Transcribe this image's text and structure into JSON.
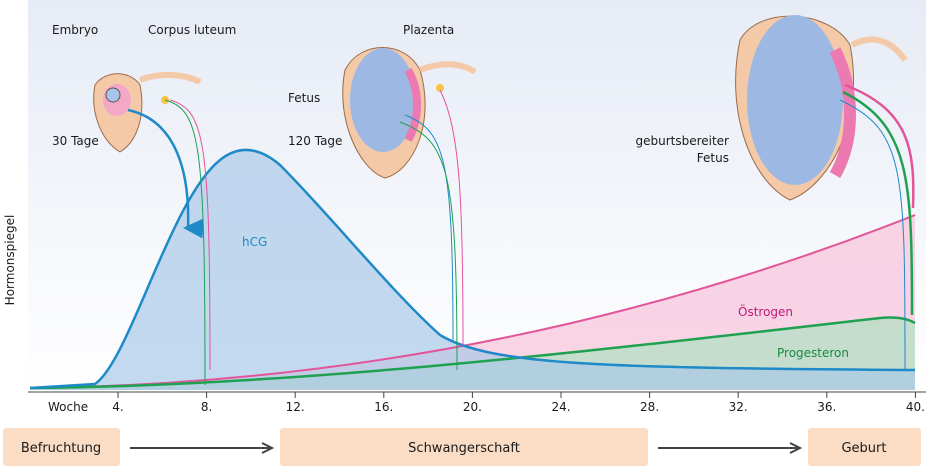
{
  "axis": {
    "y_label": "Hormonspiegel",
    "x_label": "Woche",
    "ticks": [
      "4.",
      "8.",
      "12.",
      "16.",
      "20.",
      "24.",
      "28.",
      "32.",
      "36.",
      "40."
    ]
  },
  "illustrations": {
    "embryo": "Embryo",
    "corpus_luteum": "Corpus luteum",
    "day30": "30 Tage",
    "fetus": "Fetus",
    "day120": "120 Tage",
    "placenta": "Plazenta",
    "fetus_ready": [
      "geburtsbereiter",
      "Fetus"
    ]
  },
  "curves": {
    "hcg": "hCG",
    "estrogen": "Östrogen",
    "progesterone": "Progesteron"
  },
  "stages": [
    "Befruchtung",
    "Schwangerschaft",
    "Geburt"
  ]
}
